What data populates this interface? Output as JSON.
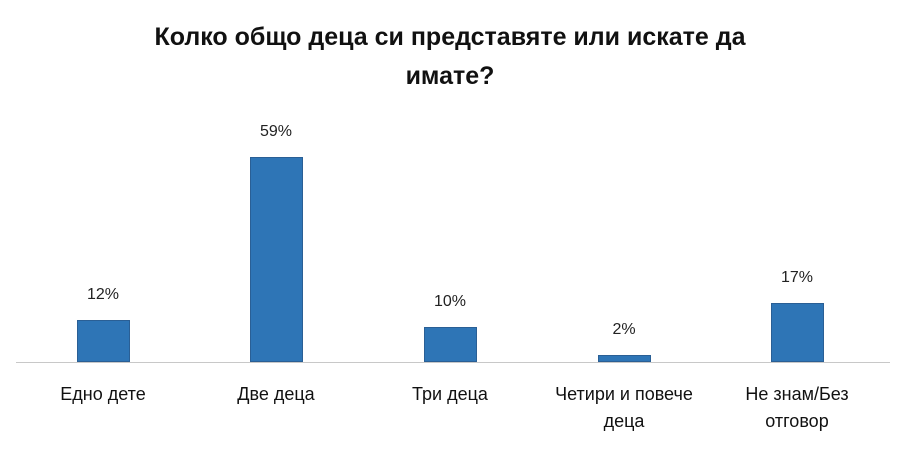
{
  "title": {
    "line1": "Колко общо деца си представяте или искате да",
    "line2": "имате?"
  },
  "colors": {
    "bar": "#2e75b6",
    "axis": "#c8c8c8"
  },
  "chart_data": {
    "type": "bar",
    "title": "Колко общо деца си представяте или искате да имате?",
    "categories": [
      "Едно дете",
      "Две деца",
      "Три деца",
      "Четири и повече деца",
      "Не знам/Без отговор"
    ],
    "values": [
      12,
      59,
      10,
      2,
      17
    ],
    "value_labels": [
      "12%",
      "59%",
      "10%",
      "2%",
      "17%"
    ],
    "unit": "%",
    "xlabel": "",
    "ylabel": "",
    "ylim": [
      0,
      75
    ],
    "grid": false,
    "legend": null
  },
  "labels": [
    {
      "l1": "Едно дете",
      "l2": ""
    },
    {
      "l1": "Две деца",
      "l2": ""
    },
    {
      "l1": "Три деца",
      "l2": ""
    },
    {
      "l1": "Четири и повече",
      "l2": "деца"
    },
    {
      "l1": "Не знам/Без",
      "l2": "отговор"
    }
  ]
}
